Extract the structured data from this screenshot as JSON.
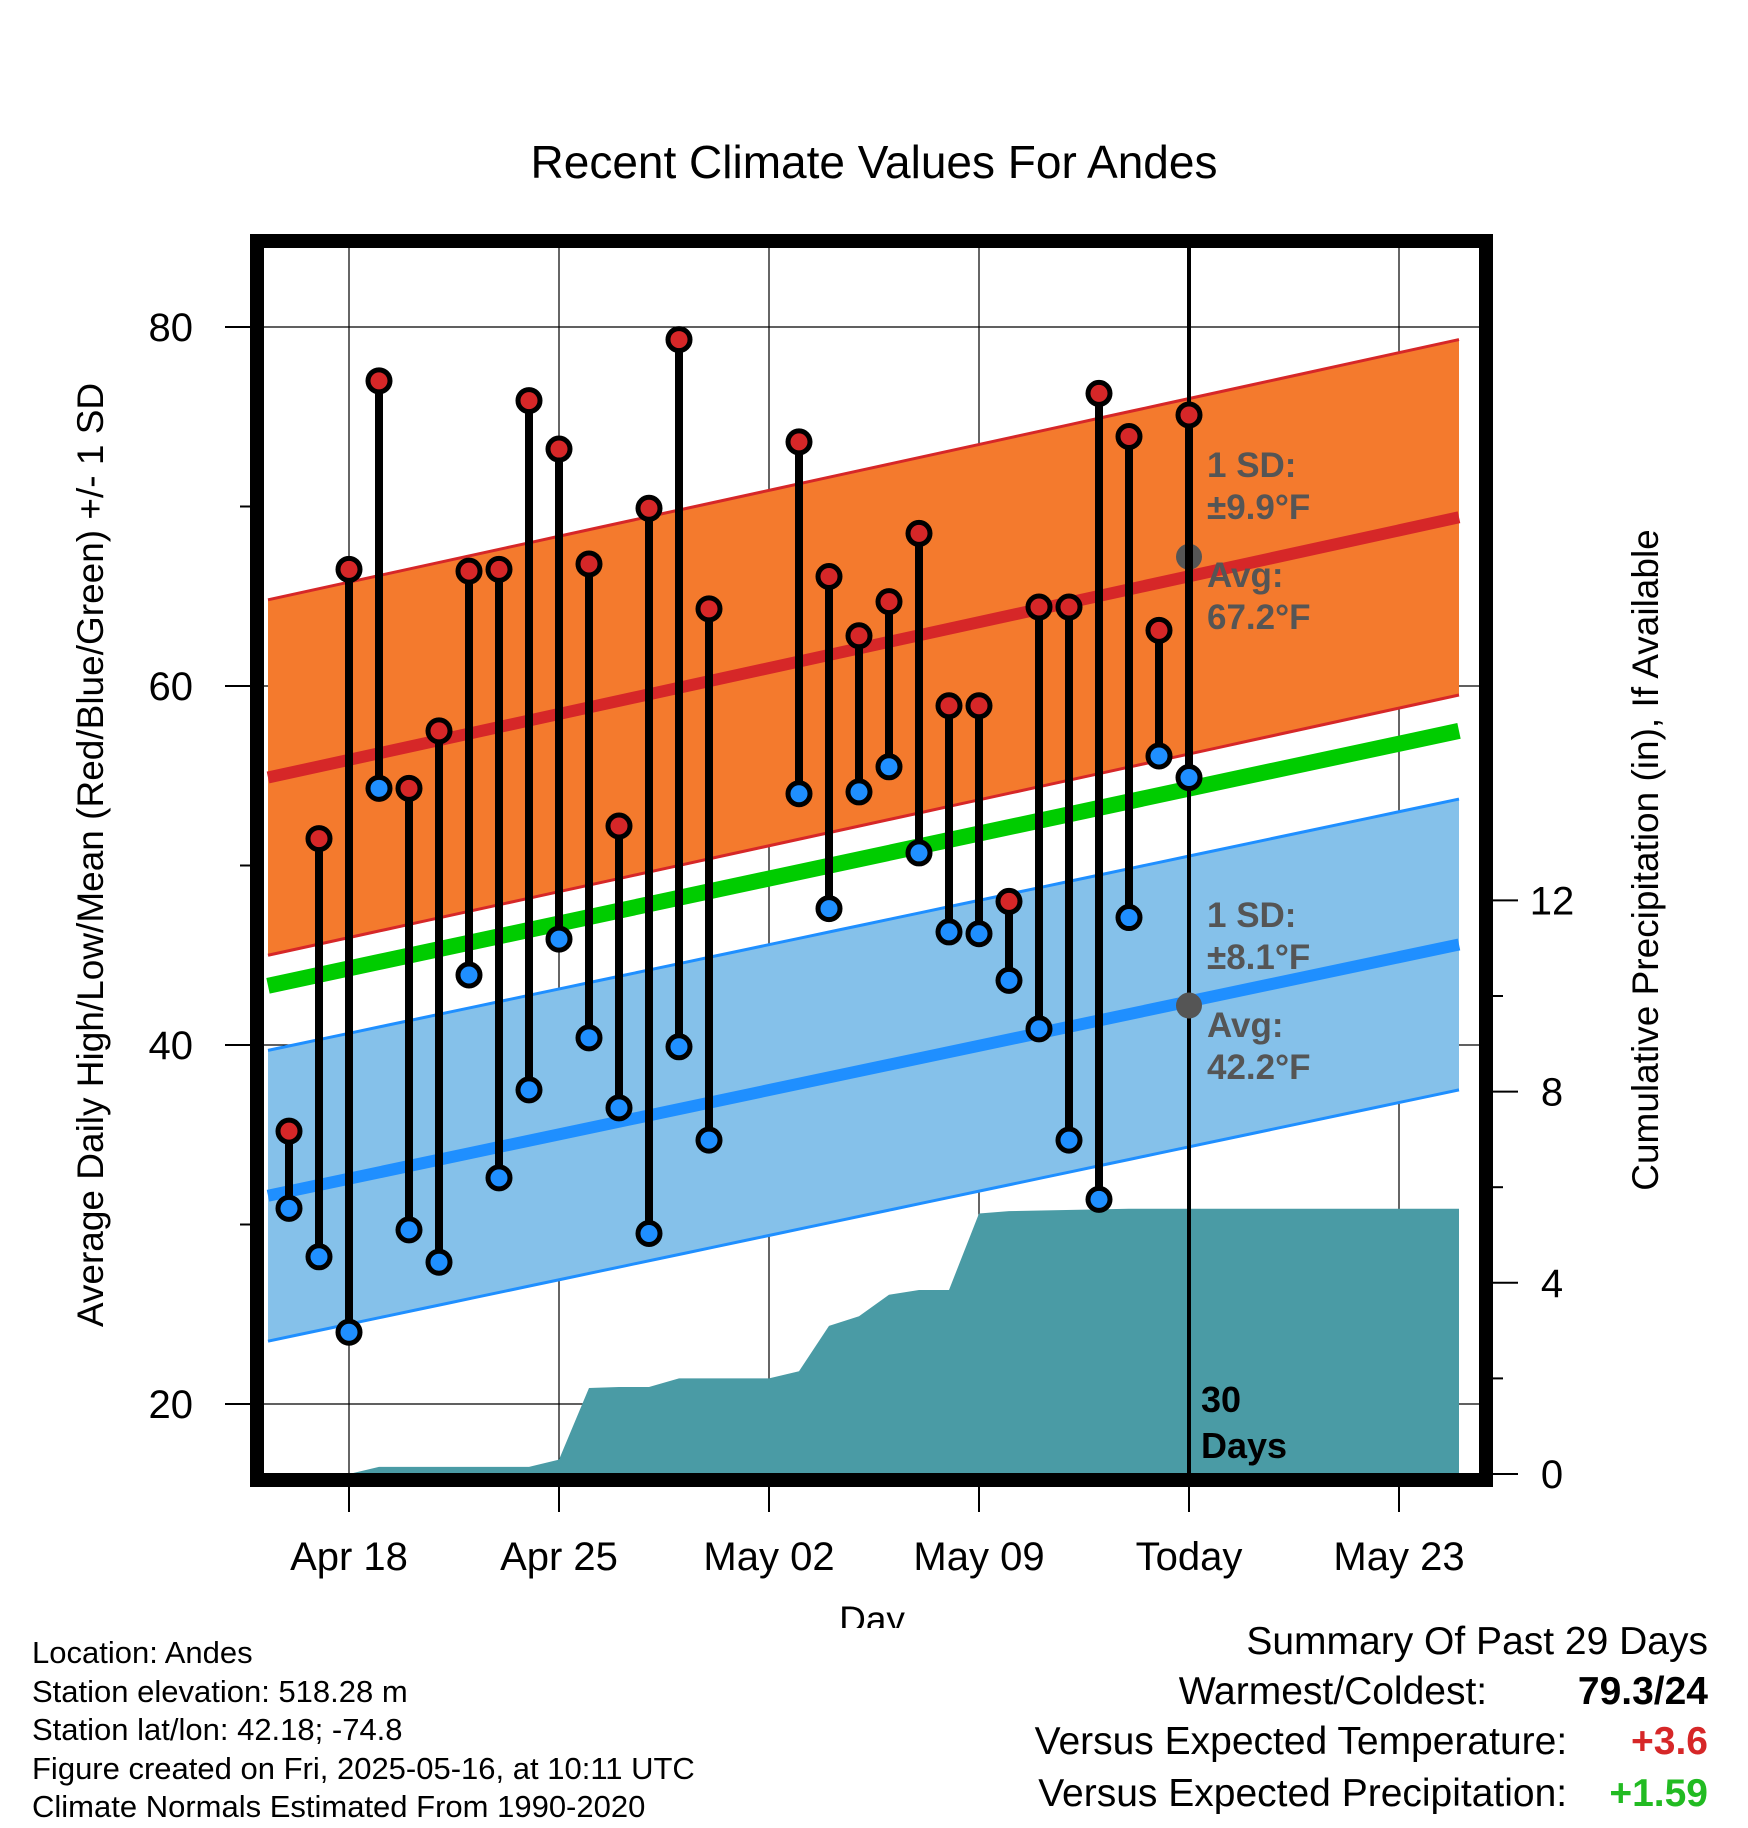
{
  "chart_data": {
    "type": "line",
    "title": "Recent Climate Values For Andes",
    "xlabel": "Day",
    "ylabel_left": "Average Daily High/Low/Mean (Red/Blue/Green) +/- 1 SD",
    "ylabel_right": "Cumulative Precipitation (in), If Available",
    "x_tick_labels": [
      "Apr 18",
      "Apr 25",
      "May 02",
      "May 09",
      "Today",
      "May 23"
    ],
    "x_tick_days": [
      2,
      9,
      16,
      23,
      30,
      37
    ],
    "x_range_days": [
      -0.7,
      39
    ],
    "y_left_ticks": [
      20,
      40,
      60,
      80
    ],
    "y_left_range": [
      16.5,
      85
    ],
    "y_right_ticks": [
      0,
      4,
      8,
      12
    ],
    "y_right_range": [
      0,
      24
    ],
    "grid": true,
    "today_marker": {
      "day": 30,
      "label_line1": "30",
      "label_line2": "Days"
    },
    "normals": {
      "day_range": [
        -0.7,
        39
      ],
      "high_mean": [
        54.9,
        69.4
      ],
      "high_sd": 9.9,
      "low_mean": [
        31.6,
        45.6
      ],
      "low_sd": 8.1,
      "mean_line": [
        43.3,
        57.5
      ]
    },
    "high_annotation": {
      "sd_label": "1 SD:",
      "sd_value": "±9.9°F",
      "avg_label": "Avg:",
      "avg_value": "67.2°F",
      "avg": 67.2
    },
    "low_annotation": {
      "sd_label": "1 SD:",
      "sd_value": "±8.1°F",
      "avg_label": "Avg:",
      "avg_value": "42.2°F",
      "avg": 42.2
    },
    "series": [
      {
        "name": "High",
        "color": "#d62728",
        "values": [
          35.2,
          51.5,
          66.5,
          77.0,
          54.3,
          57.5,
          66.4,
          66.5,
          75.9,
          73.2,
          66.8,
          52.2,
          69.9,
          79.3,
          64.3,
          null,
          null,
          73.6,
          66.1,
          62.8,
          64.7,
          68.5,
          58.9,
          58.9,
          48.0,
          64.4,
          64.4,
          76.3,
          73.9,
          63.1,
          75.1
        ]
      },
      {
        "name": "Low",
        "color": "#1f8fff",
        "values": [
          30.9,
          28.2,
          24.0,
          54.3,
          29.7,
          27.9,
          43.9,
          32.6,
          37.5,
          45.9,
          40.4,
          36.5,
          29.5,
          39.9,
          34.7,
          null,
          null,
          54.0,
          47.6,
          54.1,
          55.5,
          50.7,
          46.3,
          46.2,
          43.6,
          40.9,
          34.7,
          31.4,
          47.1,
          56.1,
          54.9
        ]
      }
    ],
    "precipitation": {
      "days": [
        0,
        1,
        2,
        3,
        8,
        9,
        10,
        11,
        12,
        13,
        14,
        15,
        16,
        17,
        18,
        19,
        20,
        21,
        22,
        23,
        24,
        28,
        39
      ],
      "values": [
        0,
        0,
        0,
        0.15,
        0.15,
        0.3,
        1.8,
        1.82,
        1.82,
        2.0,
        2.0,
        2.0,
        2.0,
        2.15,
        3.1,
        3.3,
        3.75,
        3.85,
        3.85,
        5.45,
        5.5,
        5.55,
        5.55
      ]
    },
    "colors": {
      "high_band": "#f47a2d",
      "high_band_edge": "#d62728",
      "high_line": "#d62728",
      "low_band": "#85c1ea",
      "low_band_edge": "#1f8fff",
      "low_line": "#1f8fff",
      "mean_line": "#00cc00",
      "precip": "#4a9ba5",
      "annotation": "#555555"
    }
  },
  "footer": {
    "location": "Location: Andes",
    "elevation": "Station elevation: 518.28 m",
    "latlon": "Station lat/lon: 42.18; -74.8",
    "created": "Figure created on Fri, 2025-05-16, at 10:11 UTC",
    "normals": "Climate Normals Estimated From 1990-2020"
  },
  "summary": {
    "title": "Summary Of Past 29 Days",
    "warmest_label": "Warmest/Coldest:",
    "warmest_value": "79.3/24",
    "temp_label": "Versus Expected Temperature:",
    "temp_value": "+3.6",
    "temp_color": "#d62728",
    "precip_label": "Versus Expected Precipitation:",
    "precip_value": "+1.59",
    "precip_color": "#22bb22"
  }
}
